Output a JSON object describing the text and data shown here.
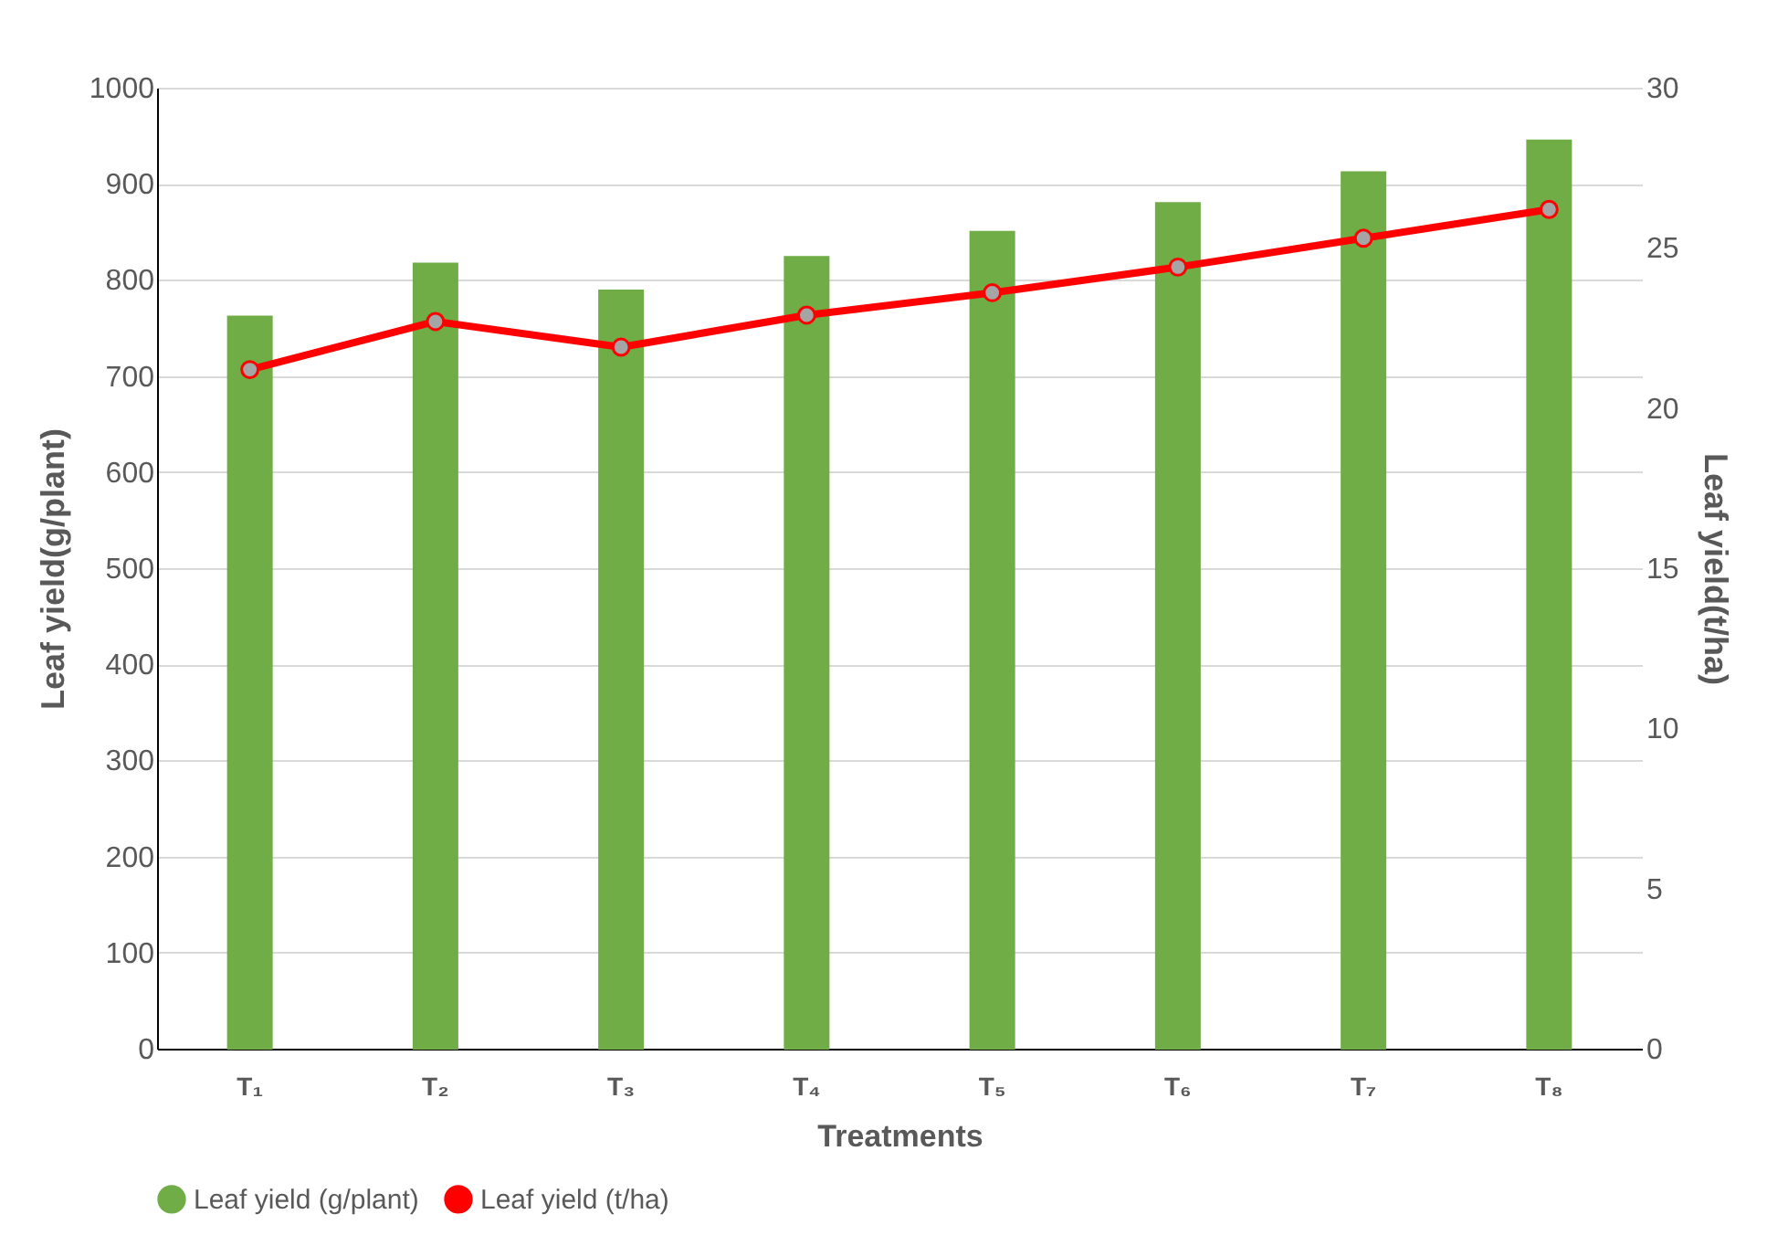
{
  "chart_data": {
    "type": "bar",
    "xlabel": "Treatments",
    "ylabel": "Leaf yield(g/plant)",
    "y2label": "Leaf yield(t/ha)",
    "categories": [
      "T₁",
      "T₂",
      "T₃",
      "T₄",
      "T₅",
      "T₆",
      "T₇",
      "T₈"
    ],
    "series": [
      {
        "name": "Leaf yield (g/plant)",
        "color": "#70ad47",
        "values": [
          762,
          817,
          789,
          824,
          850,
          880,
          912,
          945
        ]
      },
      {
        "name": "Leaf yield (t/ha)",
        "type": "line",
        "axis": "y2",
        "color": "#ff0000",
        "marker": "circle",
        "values": [
          21.2,
          22.7,
          21.9,
          22.9,
          23.6,
          24.4,
          25.3,
          26.2
        ]
      }
    ],
    "ylim": [
      0,
      1000
    ],
    "yticks": [
      0,
      100,
      200,
      300,
      400,
      500,
      600,
      700,
      800,
      900,
      1000
    ],
    "y2lim": [
      0,
      30
    ],
    "y2ticks": [
      0,
      5,
      10,
      15,
      20,
      25,
      30
    ],
    "grid": "y",
    "legend": "bottom"
  }
}
